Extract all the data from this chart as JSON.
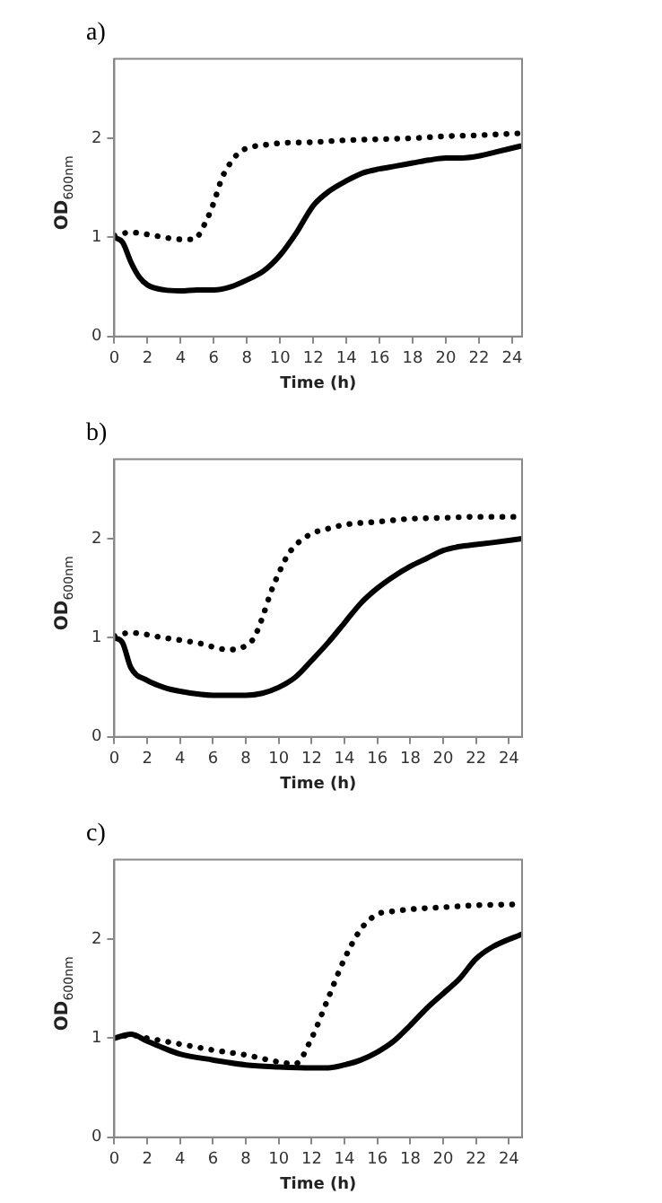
{
  "chart_data": [
    {
      "type": "line",
      "title": "a)",
      "xlabel": "Time (h)",
      "ylabel": "OD$_{600nm}$",
      "xlim": [
        0,
        24.6
      ],
      "ylim": [
        0,
        2.8
      ],
      "xticks": [
        0,
        2,
        4,
        6,
        8,
        10,
        12,
        14,
        16,
        18,
        20,
        22,
        24
      ],
      "yticks": [
        0,
        1,
        2
      ],
      "grid": false,
      "legend": false,
      "marker": "none",
      "series": [
        {
          "color": "#000000",
          "line_style": "solid",
          "x": [
            0,
            0.5,
            1,
            1.5,
            2,
            3,
            4,
            5,
            6,
            7,
            8,
            9,
            10,
            11,
            12,
            13,
            14,
            15,
            16,
            17,
            18,
            19,
            20,
            21,
            22,
            23,
            24.5
          ],
          "values": [
            1.0,
            0.95,
            0.75,
            0.6,
            0.52,
            0.47,
            0.46,
            0.47,
            0.47,
            0.5,
            0.57,
            0.66,
            0.82,
            1.05,
            1.32,
            1.47,
            1.57,
            1.65,
            1.69,
            1.72,
            1.75,
            1.78,
            1.8,
            1.8,
            1.82,
            1.86,
            1.92
          ]
        },
        {
          "color": "#000000",
          "line_style": "dotted",
          "x": [
            0,
            1,
            2,
            3,
            4,
            4.8,
            5.5,
            6,
            6.5,
            7,
            7.5,
            8,
            9,
            10,
            12,
            14,
            16,
            18,
            20,
            22,
            24.5
          ],
          "values": [
            1.02,
            1.05,
            1.03,
            1.0,
            0.98,
            0.98,
            1.15,
            1.35,
            1.6,
            1.75,
            1.85,
            1.9,
            1.93,
            1.95,
            1.96,
            1.98,
            1.99,
            2.0,
            2.02,
            2.03,
            2.05
          ]
        }
      ]
    },
    {
      "type": "line",
      "title": "b)",
      "xlabel": "Time (h)",
      "ylabel": "OD$_{600nm}$",
      "xlim": [
        0,
        24.8
      ],
      "ylim": [
        0,
        2.8
      ],
      "xticks": [
        0,
        2,
        4,
        6,
        8,
        10,
        12,
        14,
        16,
        18,
        20,
        22,
        24
      ],
      "yticks": [
        0,
        1,
        2
      ],
      "grid": false,
      "legend": false,
      "marker": "none",
      "series": [
        {
          "color": "#000000",
          "line_style": "solid",
          "x": [
            0,
            0.5,
            1,
            2,
            3,
            4,
            6,
            8,
            9,
            10,
            11,
            12,
            13,
            14,
            15,
            16,
            17,
            18,
            19,
            20,
            21,
            22,
            23,
            24.8
          ],
          "values": [
            1.0,
            0.95,
            0.7,
            0.57,
            0.5,
            0.46,
            0.42,
            0.42,
            0.44,
            0.5,
            0.6,
            0.77,
            0.95,
            1.15,
            1.35,
            1.5,
            1.62,
            1.72,
            1.8,
            1.88,
            1.92,
            1.94,
            1.96,
            2.0
          ]
        },
        {
          "color": "#000000",
          "line_style": "dotted",
          "x": [
            0,
            1,
            3,
            5,
            7,
            8,
            8.5,
            9,
            9.5,
            10,
            10.5,
            11,
            12,
            13,
            14,
            16,
            18,
            20,
            22,
            24.8
          ],
          "values": [
            1.02,
            1.05,
            1.0,
            0.95,
            0.88,
            0.92,
            1.0,
            1.2,
            1.45,
            1.65,
            1.82,
            1.93,
            2.05,
            2.1,
            2.14,
            2.17,
            2.2,
            2.21,
            2.22,
            2.22
          ]
        }
      ]
    },
    {
      "type": "line",
      "title": "c)",
      "xlabel": "Time (h)",
      "ylabel": "OD$_{600nm}$",
      "xlim": [
        0,
        24.8
      ],
      "ylim": [
        0,
        2.8
      ],
      "xticks": [
        0,
        2,
        4,
        6,
        8,
        10,
        12,
        14,
        16,
        18,
        20,
        22,
        24
      ],
      "yticks": [
        0,
        1,
        2
      ],
      "grid": false,
      "legend": false,
      "marker": "none",
      "series": [
        {
          "color": "#000000",
          "line_style": "solid",
          "x": [
            0,
            1,
            2,
            3,
            4,
            6,
            8,
            10,
            12,
            13,
            14,
            15,
            16,
            17,
            18,
            19,
            20,
            21,
            22,
            23,
            24.8
          ],
          "values": [
            1.0,
            1.04,
            0.97,
            0.9,
            0.84,
            0.78,
            0.73,
            0.71,
            0.7,
            0.7,
            0.73,
            0.78,
            0.86,
            0.97,
            1.13,
            1.3,
            1.45,
            1.6,
            1.8,
            1.92,
            2.05
          ]
        },
        {
          "color": "#000000",
          "line_style": "dotted",
          "x": [
            0,
            1,
            2,
            4,
            6,
            8,
            10,
            11,
            12,
            13,
            14,
            15,
            16,
            17,
            18,
            20,
            22,
            24.8
          ],
          "values": [
            1.0,
            1.03,
            1.0,
            0.94,
            0.88,
            0.83,
            0.76,
            0.74,
            1.0,
            1.4,
            1.8,
            2.1,
            2.25,
            2.28,
            2.3,
            2.32,
            2.34,
            2.35
          ]
        }
      ]
    }
  ]
}
